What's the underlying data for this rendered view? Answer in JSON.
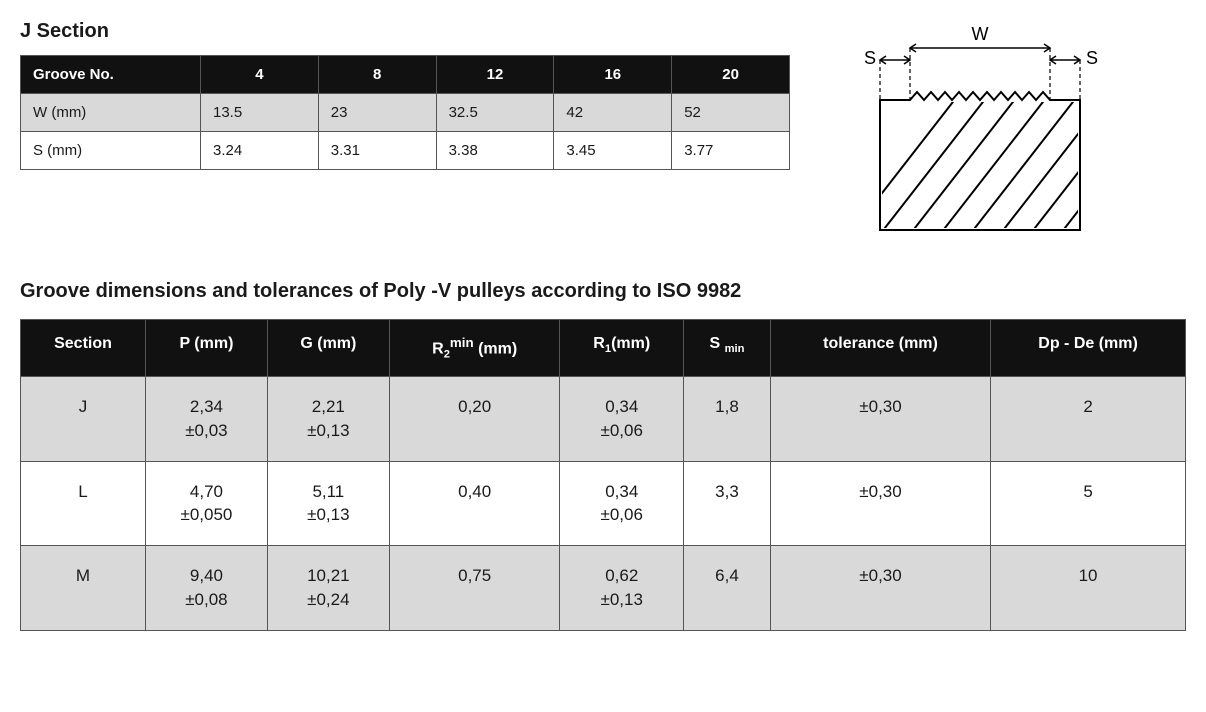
{
  "j_section": {
    "title": "J Section",
    "table": {
      "header_label": "Groove No.",
      "groove_nos": [
        "4",
        "8",
        "12",
        "16",
        "20"
      ],
      "rows": [
        {
          "label": "W (mm)",
          "values": [
            "13.5",
            "23",
            "32.5",
            "42",
            "52"
          ],
          "alt": true
        },
        {
          "label": "S (mm)",
          "values": [
            "3.24",
            "3.31",
            "3.38",
            "3.45",
            "3.77"
          ],
          "alt": false
        }
      ],
      "header_bg": "#111111",
      "header_fg": "#ffffff",
      "alt_bg": "#d9d9d9",
      "border_color": "#555555"
    }
  },
  "diagram": {
    "labels": {
      "w": "W",
      "s_left": "S",
      "s_right": "S"
    },
    "stroke": "#000000",
    "dash": "4,3",
    "hatch_stroke": "#000000"
  },
  "tolerances": {
    "title": "Groove dimensions and tolerances of Poly -V pulleys according to ISO 9982",
    "columns": [
      "Section",
      "P (mm)",
      "G (mm)",
      "R<sub>2</sub><sup>min</sup> (mm)",
      "R<sub>1</sub>(mm)",
      "S <sub>min</sub>",
      "tolerance (mm)",
      "Dp - De (mm)"
    ],
    "rows": [
      {
        "alt": true,
        "cells": [
          "J",
          "2,34<br>±0,03",
          "2,21<br>±0,13",
          "0,20",
          "0,34<br>±0,06",
          "1,8",
          "±0,30",
          "2"
        ]
      },
      {
        "alt": false,
        "cells": [
          "L",
          "4,70<br>±0,050",
          "5,11<br>±0,13",
          "0,40",
          "0,34<br>±0,06",
          "3,3",
          "±0,30",
          "5"
        ]
      },
      {
        "alt": true,
        "cells": [
          "M",
          "9,40<br>±0,08",
          "10,21<br>±0,24",
          "0,75",
          "0,62<br>±0,13",
          "6,4",
          "±0,30",
          "10"
        ]
      }
    ],
    "header_bg": "#111111",
    "header_fg": "#ffffff",
    "alt_bg": "#d9d9d9",
    "border_color": "#555555"
  }
}
